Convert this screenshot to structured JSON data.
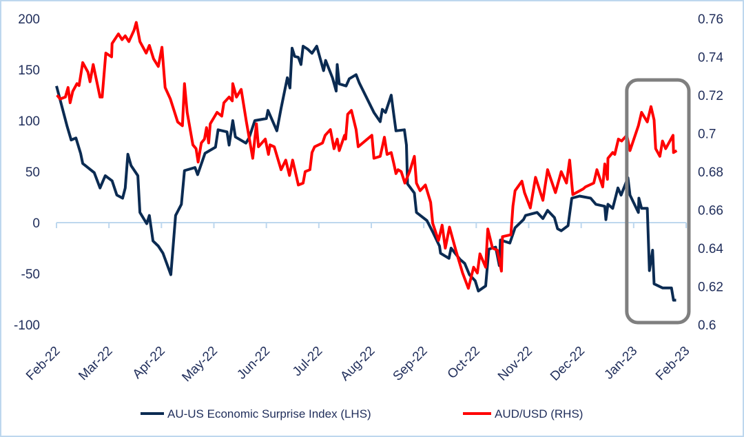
{
  "chart_data": {
    "type": "line",
    "title": "",
    "x_unit": "months since Feb-22",
    "x_tick_labels": [
      "Feb-22",
      "Mar-22",
      "Apr-22",
      "May-22",
      "Jun-22",
      "Jul-22",
      "Aug-22",
      "Sep-22",
      "Oct-22",
      "Nov-22",
      "Dec-22",
      "Jan-23",
      "Feb-23"
    ],
    "xlim": [
      0,
      12
    ],
    "y_left": {
      "label": "AU-US Economic Surprise Index",
      "ylim": [
        -100,
        200
      ],
      "ticks": [
        "200",
        "150",
        "100",
        "50",
        "0",
        "-50",
        "-100"
      ],
      "tick_values": [
        200,
        150,
        100,
        50,
        0,
        -50,
        -100
      ]
    },
    "y_right": {
      "label": "AUD/USD",
      "ylim": [
        0.6,
        0.76
      ],
      "ticks": [
        "0.76",
        "0.74",
        "0.72",
        "0.7",
        "0.68",
        "0.66",
        "0.64",
        "0.62",
        "0.6"
      ],
      "tick_values": [
        0.76,
        0.74,
        0.72,
        0.7,
        0.68,
        0.66,
        0.64,
        0.62,
        0.6
      ]
    },
    "grid": false,
    "legend_position": "bottom",
    "highlight": {
      "x_range": [
        11.0,
        12.0
      ],
      "description_shown": false
    },
    "series": [
      {
        "name": "AU-US Economic Surprise Index (LHS)",
        "axis": "left",
        "color": "#0B2B52",
        "points": [
          [
            0,
            134
          ],
          [
            0.2,
            95
          ],
          [
            0.28,
            81
          ],
          [
            0.37,
            83
          ],
          [
            0.46,
            68
          ],
          [
            0.5,
            58
          ],
          [
            0.72,
            49
          ],
          [
            0.83,
            34
          ],
          [
            0.93,
            46
          ],
          [
            1.06,
            41
          ],
          [
            1.15,
            27
          ],
          [
            1.26,
            24
          ],
          [
            1.31,
            34
          ],
          [
            1.36,
            67
          ],
          [
            1.42,
            56
          ],
          [
            1.55,
            46
          ],
          [
            1.59,
            10
          ],
          [
            1.72,
            -1
          ],
          [
            1.77,
            7
          ],
          [
            1.84,
            -18
          ],
          [
            1.94,
            -23
          ],
          [
            2.03,
            -30
          ],
          [
            2.18,
            -51
          ],
          [
            2.27,
            7
          ],
          [
            2.38,
            18
          ],
          [
            2.44,
            51
          ],
          [
            2.64,
            54
          ],
          [
            2.69,
            47
          ],
          [
            2.83,
            68
          ],
          [
            3.03,
            74
          ],
          [
            3.08,
            91
          ],
          [
            3.25,
            89
          ],
          [
            3.29,
            76
          ],
          [
            3.36,
            100
          ],
          [
            3.41,
            84
          ],
          [
            3.61,
            78
          ],
          [
            3.67,
            83
          ],
          [
            3.78,
            100
          ],
          [
            4.0,
            102
          ],
          [
            4.03,
            110
          ],
          [
            4.2,
            90
          ],
          [
            4.28,
            112
          ],
          [
            4.4,
            142
          ],
          [
            4.45,
            132
          ],
          [
            4.49,
            171
          ],
          [
            4.54,
            163
          ],
          [
            4.61,
            162
          ],
          [
            4.66,
            155
          ],
          [
            4.7,
            173
          ],
          [
            4.79,
            170
          ],
          [
            4.87,
            166
          ],
          [
            4.96,
            173
          ],
          [
            5.09,
            149
          ],
          [
            5.13,
            159
          ],
          [
            5.26,
            142
          ],
          [
            5.33,
            129
          ],
          [
            5.35,
            155
          ],
          [
            5.39,
            136
          ],
          [
            5.52,
            134
          ],
          [
            5.58,
            141
          ],
          [
            5.71,
            145
          ],
          [
            5.77,
            137
          ],
          [
            6.05,
            108
          ],
          [
            6.17,
            99
          ],
          [
            6.21,
            111
          ],
          [
            6.27,
            108
          ],
          [
            6.38,
            125
          ],
          [
            6.43,
            105
          ],
          [
            6.47,
            90
          ],
          [
            6.63,
            91
          ],
          [
            6.67,
            76
          ],
          [
            6.69,
            38
          ],
          [
            6.82,
            29
          ],
          [
            6.86,
            10
          ],
          [
            7.06,
            2
          ],
          [
            7.17,
            -9
          ],
          [
            7.3,
            -23
          ],
          [
            7.32,
            -30
          ],
          [
            7.48,
            -35
          ],
          [
            7.52,
            -25
          ],
          [
            7.69,
            -36
          ],
          [
            7.78,
            -40
          ],
          [
            7.87,
            -51
          ],
          [
            7.98,
            -57
          ],
          [
            8.04,
            -67
          ],
          [
            8.18,
            -62
          ],
          [
            8.24,
            -26
          ],
          [
            8.37,
            -24
          ],
          [
            8.44,
            -42
          ],
          [
            8.46,
            -17
          ],
          [
            8.64,
            -20
          ],
          [
            8.74,
            -5
          ],
          [
            8.9,
            3
          ],
          [
            8.94,
            7
          ],
          [
            9.16,
            10
          ],
          [
            9.27,
            4
          ],
          [
            9.36,
            12
          ],
          [
            9.49,
            5
          ],
          [
            9.55,
            -6
          ],
          [
            9.62,
            -8
          ],
          [
            9.75,
            -3
          ],
          [
            9.82,
            24
          ],
          [
            9.97,
            26
          ],
          [
            10.18,
            24
          ],
          [
            10.28,
            18
          ],
          [
            10.45,
            16
          ],
          [
            10.47,
            3
          ],
          [
            10.51,
            18
          ],
          [
            10.6,
            14
          ],
          [
            10.7,
            34
          ],
          [
            10.76,
            27
          ],
          [
            10.89,
            44
          ],
          [
            10.93,
            27
          ],
          [
            11.09,
            10
          ],
          [
            11.1,
            24
          ],
          [
            11.15,
            14
          ],
          [
            11.26,
            14
          ],
          [
            11.3,
            -47
          ],
          [
            11.36,
            -27
          ],
          [
            11.39,
            -60
          ],
          [
            11.55,
            -64
          ],
          [
            11.72,
            -64
          ],
          [
            11.76,
            -76
          ],
          [
            11.81,
            -76
          ]
        ]
      },
      {
        "name": "AUD/USD (RHS)",
        "axis": "right",
        "color": "#FF0000",
        "points": [
          [
            0.01,
            0.72
          ],
          [
            0.07,
            0.718
          ],
          [
            0.17,
            0.719
          ],
          [
            0.22,
            0.724
          ],
          [
            0.26,
            0.716
          ],
          [
            0.31,
            0.722
          ],
          [
            0.39,
            0.726
          ],
          [
            0.43,
            0.725
          ],
          [
            0.5,
            0.737
          ],
          [
            0.6,
            0.732
          ],
          [
            0.64,
            0.727
          ],
          [
            0.7,
            0.736
          ],
          [
            0.83,
            0.719
          ],
          [
            0.87,
            0.719
          ],
          [
            0.94,
            0.742
          ],
          [
            1.05,
            0.74
          ],
          [
            1.06,
            0.747
          ],
          [
            1.18,
            0.752
          ],
          [
            1.25,
            0.749
          ],
          [
            1.31,
            0.751
          ],
          [
            1.38,
            0.748
          ],
          [
            1.48,
            0.754
          ],
          [
            1.52,
            0.758
          ],
          [
            1.59,
            0.748
          ],
          [
            1.71,
            0.742
          ],
          [
            1.77,
            0.746
          ],
          [
            1.85,
            0.739
          ],
          [
            1.94,
            0.735
          ],
          [
            2.01,
            0.745
          ],
          [
            2.07,
            0.724
          ],
          [
            2.17,
            0.718
          ],
          [
            2.24,
            0.712
          ],
          [
            2.31,
            0.706
          ],
          [
            2.4,
            0.704
          ],
          [
            2.44,
            0.726
          ],
          [
            2.49,
            0.711
          ],
          [
            2.6,
            0.694
          ],
          [
            2.66,
            0.692
          ],
          [
            2.7,
            0.685
          ],
          [
            2.76,
            0.695
          ],
          [
            2.82,
            0.697
          ],
          [
            2.86,
            0.703
          ],
          [
            2.9,
            0.695
          ],
          [
            2.93,
            0.705
          ],
          [
            3.06,
            0.711
          ],
          [
            3.15,
            0.709
          ],
          [
            3.19,
            0.716
          ],
          [
            3.29,
            0.719
          ],
          [
            3.35,
            0.717
          ],
          [
            3.36,
            0.726
          ],
          [
            3.43,
            0.719
          ],
          [
            3.52,
            0.723
          ],
          [
            3.62,
            0.706
          ],
          [
            3.74,
            0.687
          ],
          [
            3.81,
            0.705
          ],
          [
            3.85,
            0.693
          ],
          [
            3.98,
            0.697
          ],
          [
            4.04,
            0.689
          ],
          [
            4.07,
            0.694
          ],
          [
            4.15,
            0.693
          ],
          [
            4.28,
            0.681
          ],
          [
            4.37,
            0.686
          ],
          [
            4.44,
            0.678
          ],
          [
            4.5,
            0.686
          ],
          [
            4.61,
            0.673
          ],
          [
            4.7,
            0.674
          ],
          [
            4.74,
            0.68
          ],
          [
            4.83,
            0.681
          ],
          [
            4.87,
            0.69
          ],
          [
            4.92,
            0.693
          ],
          [
            5.07,
            0.695
          ],
          [
            5.12,
            0.699
          ],
          [
            5.22,
            0.702
          ],
          [
            5.29,
            0.692
          ],
          [
            5.35,
            0.697
          ],
          [
            5.39,
            0.691
          ],
          [
            5.49,
            0.699
          ],
          [
            5.51,
            0.697
          ],
          [
            5.55,
            0.71
          ],
          [
            5.62,
            0.712
          ],
          [
            5.71,
            0.702
          ],
          [
            5.75,
            0.693
          ],
          [
            6.01,
            0.699
          ],
          [
            6.05,
            0.687
          ],
          [
            6.17,
            0.688
          ],
          [
            6.21,
            0.693
          ],
          [
            6.25,
            0.698
          ],
          [
            6.3,
            0.689
          ],
          [
            6.38,
            0.69
          ],
          [
            6.43,
            0.684
          ],
          [
            6.47,
            0.679
          ],
          [
            6.51,
            0.681
          ],
          [
            6.57,
            0.68
          ],
          [
            6.64,
            0.674
          ],
          [
            6.73,
            0.68
          ],
          [
            6.82,
            0.688
          ],
          [
            6.86,
            0.674
          ],
          [
            6.93,
            0.67
          ],
          [
            7.03,
            0.673
          ],
          [
            7.13,
            0.664
          ],
          [
            7.17,
            0.653
          ],
          [
            7.28,
            0.644
          ],
          [
            7.35,
            0.652
          ],
          [
            7.41,
            0.64
          ],
          [
            7.49,
            0.651
          ],
          [
            7.61,
            0.639
          ],
          [
            7.74,
            0.627
          ],
          [
            7.85,
            0.619
          ],
          [
            7.95,
            0.63
          ],
          [
            8.02,
            0.627
          ],
          [
            8.07,
            0.637
          ],
          [
            8.18,
            0.63
          ],
          [
            8.22,
            0.65
          ],
          [
            8.31,
            0.64
          ],
          [
            8.4,
            0.639
          ],
          [
            8.48,
            0.628
          ],
          [
            8.5,
            0.646
          ],
          [
            8.66,
            0.647
          ],
          [
            8.7,
            0.662
          ],
          [
            8.74,
            0.67
          ],
          [
            8.87,
            0.675
          ],
          [
            8.92,
            0.669
          ],
          [
            9.03,
            0.661
          ],
          [
            9.13,
            0.677
          ],
          [
            9.27,
            0.665
          ],
          [
            9.36,
            0.681
          ],
          [
            9.51,
            0.669
          ],
          [
            9.62,
            0.68
          ],
          [
            9.72,
            0.674
          ],
          [
            9.78,
            0.686
          ],
          [
            9.84,
            0.668
          ],
          [
            10.04,
            0.671
          ],
          [
            10.08,
            0.672
          ],
          [
            10.24,
            0.674
          ],
          [
            10.3,
            0.681
          ],
          [
            10.41,
            0.672
          ],
          [
            10.45,
            0.684
          ],
          [
            10.5,
            0.676
          ],
          [
            10.51,
            0.687
          ],
          [
            10.6,
            0.69
          ],
          [
            10.64,
            0.689
          ],
          [
            10.71,
            0.697
          ],
          [
            10.77,
            0.696
          ],
          [
            10.87,
            0.699
          ],
          [
            10.93,
            0.691
          ],
          [
            11.09,
            0.704
          ],
          [
            11.15,
            0.711
          ],
          [
            11.26,
            0.706
          ],
          [
            11.33,
            0.714
          ],
          [
            11.39,
            0.707
          ],
          [
            11.42,
            0.692
          ],
          [
            11.5,
            0.688
          ],
          [
            11.55,
            0.696
          ],
          [
            11.61,
            0.692
          ],
          [
            11.75,
            0.699
          ],
          [
            11.76,
            0.69
          ],
          [
            11.82,
            0.691
          ]
        ]
      }
    ]
  },
  "legend": {
    "items": [
      "AU-US Economic Surprise Index (LHS)",
      "AUD/USD (RHS)"
    ]
  },
  "colors": {
    "axis": "#BDD7EE",
    "text": "#1F2D5A",
    "highlight": "#7F7F7F"
  }
}
